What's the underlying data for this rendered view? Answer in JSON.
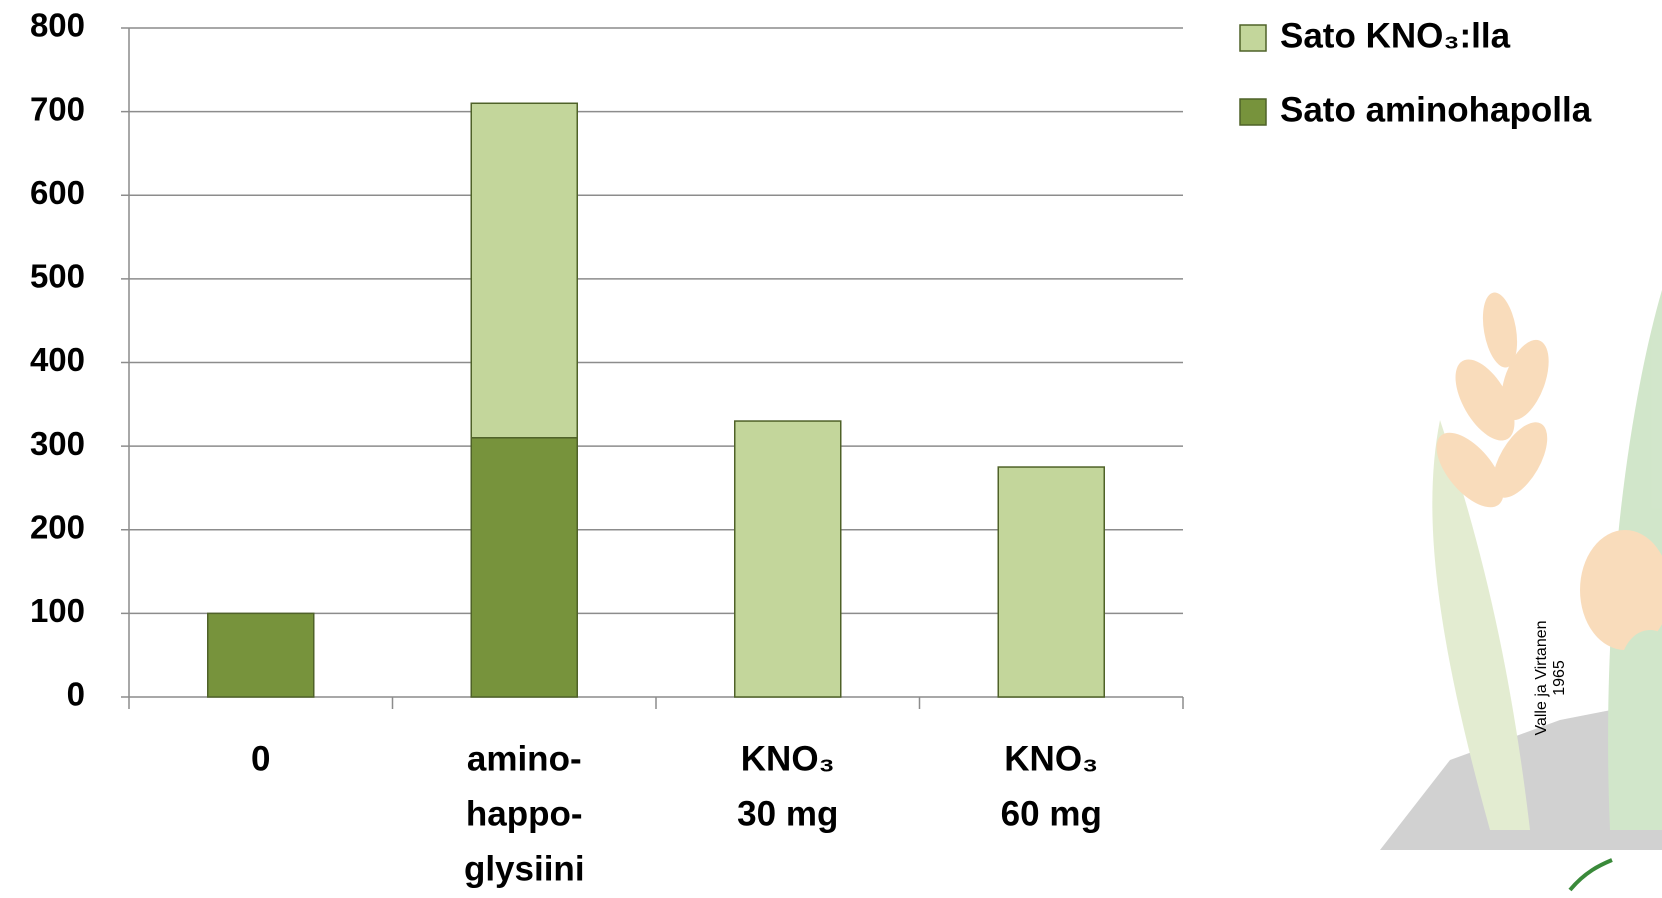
{
  "chart_data": {
    "type": "stacked_bar",
    "categories": [
      [
        "0"
      ],
      [
        "amino-",
        "happo-",
        "glysiini"
      ],
      [
        "KNO₃",
        "30 mg"
      ],
      [
        "KNO₃",
        "60 mg"
      ]
    ],
    "series": [
      {
        "name": "Sato aminohapolla",
        "color": "#77933c",
        "values": [
          100,
          310,
          null,
          null
        ]
      },
      {
        "name": "Sato KNO₃:lla",
        "color": "#c3d69b",
        "values": [
          null,
          400,
          330,
          275
        ]
      }
    ],
    "ylim": [
      0,
      800
    ],
    "yticks": [
      0,
      100,
      200,
      300,
      400,
      500,
      600,
      700,
      800
    ],
    "grid": true,
    "annotation": [
      "Valle  ja Virtanen",
      "1965"
    ]
  }
}
